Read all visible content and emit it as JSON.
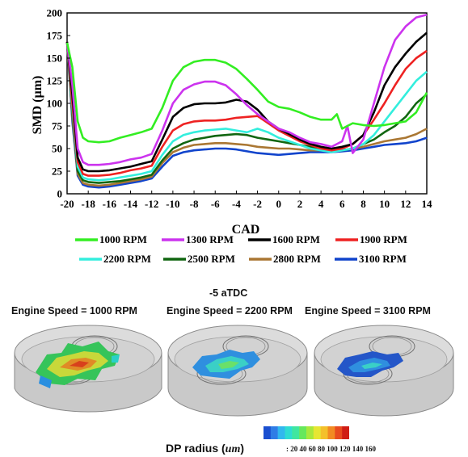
{
  "chart_data": {
    "type": "line",
    "xlabel": "CAD",
    "ylabel": "SMD (µm)",
    "xlim": [
      -20,
      14
    ],
    "ylim": [
      0,
      200
    ],
    "xticks": [
      -20,
      -18,
      -16,
      -14,
      -12,
      -10,
      -8,
      -6,
      -4,
      -2,
      0,
      2,
      4,
      6,
      8,
      10,
      12,
      14
    ],
    "yticks": [
      0,
      25,
      50,
      75,
      100,
      125,
      150,
      175,
      200
    ],
    "legend_position": "bottom",
    "series": [
      {
        "name": "1000 RPM",
        "color": "#33ee22",
        "x": [
          -20,
          -19.5,
          -19,
          -18.5,
          -18,
          -17,
          -16,
          -15,
          -14,
          -13,
          -12,
          -11,
          -10,
          -9,
          -8,
          -7,
          -6,
          -5,
          -4,
          -3,
          -2,
          -1,
          0,
          1,
          2,
          3,
          4,
          5,
          5.5,
          6,
          6.5,
          7,
          8,
          9,
          10,
          11,
          12,
          13,
          14
        ],
        "y": [
          167,
          140,
          80,
          62,
          58,
          57,
          58,
          62,
          65,
          68,
          72,
          95,
          125,
          140,
          146,
          148,
          148,
          145,
          138,
          127,
          115,
          102,
          96,
          94,
          90,
          85,
          82,
          82,
          88,
          72,
          75,
          78,
          76,
          75,
          76,
          78,
          80,
          90,
          112
        ]
      },
      {
        "name": "1300 RPM",
        "color": "#cc33ee",
        "x": [
          -20,
          -19.5,
          -19,
          -18.5,
          -18,
          -17,
          -16,
          -15,
          -14,
          -13,
          -12,
          -11,
          -10,
          -9,
          -8,
          -7,
          -6,
          -5,
          -4,
          -3,
          -2,
          -1,
          0,
          1,
          2,
          3,
          4,
          5,
          6,
          6.5,
          7,
          8,
          9,
          10,
          11,
          12,
          13,
          14
        ],
        "y": [
          167,
          120,
          50,
          35,
          32,
          32,
          33,
          35,
          38,
          40,
          44,
          70,
          100,
          115,
          121,
          124,
          124,
          120,
          110,
          98,
          88,
          80,
          72,
          68,
          62,
          57,
          55,
          52,
          58,
          75,
          45,
          60,
          100,
          140,
          170,
          185,
          195,
          198
        ]
      },
      {
        "name": "1600 RPM",
        "color": "#000000",
        "x": [
          -20,
          -19.5,
          -19,
          -18.5,
          -18,
          -17,
          -16,
          -15,
          -14,
          -13,
          -12,
          -11,
          -10,
          -9,
          -8,
          -7,
          -6,
          -5,
          -4,
          -3,
          -2,
          -1,
          0,
          1,
          2,
          3,
          4,
          5,
          6,
          7,
          8,
          9,
          10,
          11,
          12,
          13,
          14
        ],
        "y": [
          168,
          110,
          40,
          27,
          25,
          25,
          26,
          28,
          30,
          33,
          36,
          60,
          85,
          95,
          99,
          100,
          100,
          101,
          104,
          102,
          93,
          80,
          72,
          66,
          60,
          55,
          52,
          50,
          52,
          55,
          65,
          90,
          120,
          140,
          155,
          168,
          178
        ]
      },
      {
        "name": "1900 RPM",
        "color": "#ee2222",
        "x": [
          -20,
          -19.5,
          -19,
          -18.5,
          -18,
          -17,
          -16,
          -15,
          -14,
          -13,
          -12,
          -11,
          -10,
          -9,
          -8,
          -7,
          -6,
          -5,
          -4,
          -3,
          -2,
          -1,
          0,
          1,
          2,
          3,
          4,
          5,
          6,
          7,
          8,
          9,
          10,
          11,
          12,
          13,
          14
        ],
        "y": [
          168,
          100,
          35,
          22,
          20,
          20,
          21,
          23,
          26,
          28,
          31,
          52,
          70,
          77,
          80,
          81,
          81,
          82,
          84,
          85,
          86,
          78,
          70,
          64,
          58,
          54,
          50,
          48,
          50,
          55,
          65,
          82,
          100,
          120,
          138,
          150,
          158
        ]
      },
      {
        "name": "2200 RPM",
        "color": "#33eedd",
        "x": [
          -20,
          -19.5,
          -19,
          -18.5,
          -18,
          -17,
          -16,
          -15,
          -14,
          -13,
          -12,
          -11,
          -10,
          -9,
          -8,
          -7,
          -6,
          -5,
          -4,
          -3,
          -2,
          -1,
          0,
          1,
          2,
          3,
          4,
          5,
          6,
          7,
          8,
          9,
          10,
          11,
          12,
          13,
          14
        ],
        "y": [
          168,
          95,
          30,
          18,
          16,
          15,
          16,
          18,
          20,
          22,
          25,
          43,
          58,
          65,
          68,
          70,
          71,
          72,
          70,
          68,
          72,
          68,
          62,
          58,
          54,
          50,
          48,
          46,
          48,
          50,
          55,
          65,
          80,
          95,
          110,
          125,
          135
        ]
      },
      {
        "name": "2500 RPM",
        "color": "#116611",
        "x": [
          -20,
          -19.5,
          -19,
          -18.5,
          -18,
          -17,
          -16,
          -15,
          -14,
          -13,
          -12,
          -11,
          -10,
          -9,
          -8,
          -7,
          -6,
          -5,
          -4,
          -3,
          -2,
          -1,
          0,
          1,
          2,
          3,
          4,
          5,
          6,
          7,
          8,
          9,
          10,
          11,
          12,
          13,
          14
        ],
        "y": [
          168,
          90,
          25,
          15,
          13,
          12,
          13,
          14,
          16,
          18,
          21,
          37,
          50,
          56,
          60,
          62,
          64,
          65,
          66,
          65,
          62,
          60,
          58,
          56,
          54,
          52,
          50,
          48,
          48,
          50,
          55,
          60,
          68,
          75,
          85,
          100,
          110
        ]
      },
      {
        "name": "2800 RPM",
        "color": "#aa7733",
        "x": [
          -20,
          -19.5,
          -19,
          -18.5,
          -18,
          -17,
          -16,
          -15,
          -14,
          -13,
          -12,
          -11,
          -10,
          -9,
          -8,
          -7,
          -6,
          -5,
          -4,
          -3,
          -2,
          -1,
          0,
          1,
          2,
          3,
          4,
          5,
          6,
          7,
          8,
          9,
          10,
          11,
          12,
          13,
          14
        ],
        "y": [
          168,
          85,
          22,
          12,
          10,
          9,
          10,
          12,
          14,
          16,
          19,
          34,
          46,
          51,
          54,
          55,
          56,
          56,
          55,
          54,
          52,
          51,
          50,
          50,
          49,
          48,
          48,
          47,
          48,
          50,
          52,
          55,
          58,
          60,
          62,
          66,
          72
        ]
      },
      {
        "name": "3100 RPM",
        "color": "#1144cc",
        "x": [
          -20,
          -19.5,
          -19,
          -18.5,
          -18,
          -17,
          -16,
          -15,
          -14,
          -13,
          -12,
          -11,
          -10,
          -9,
          -8,
          -7,
          -6,
          -5,
          -4,
          -3,
          -2,
          -1,
          0,
          1,
          2,
          3,
          4,
          5,
          6,
          7,
          8,
          9,
          10,
          11,
          12,
          13,
          14
        ],
        "y": [
          168,
          80,
          20,
          10,
          8,
          7,
          8,
          10,
          12,
          14,
          17,
          30,
          42,
          46,
          48,
          49,
          50,
          50,
          49,
          47,
          45,
          44,
          43,
          44,
          45,
          46,
          46,
          46,
          47,
          48,
          50,
          52,
          54,
          55,
          56,
          58,
          62
        ]
      }
    ]
  },
  "panels": {
    "timing_label": "-5 aTDC",
    "items": [
      {
        "title": "Engine Speed = 1000 RPM"
      },
      {
        "title": "Engine Speed = 2200 RPM"
      },
      {
        "title": "Engine Speed = 3100 RPM"
      }
    ]
  },
  "colorbar": {
    "label_main": "DP  radius (",
    "label_unit": "um",
    "label_close": ")",
    "tick_text": ": 20 40 60 80 100 120 140 160",
    "colors": [
      "#1a4fd0",
      "#2f7de6",
      "#31b8ee",
      "#2edcd2",
      "#3fe6a0",
      "#66e85c",
      "#a8e83c",
      "#e6e632",
      "#f4c02a",
      "#f28a22",
      "#e84a1e",
      "#d01c14"
    ]
  }
}
